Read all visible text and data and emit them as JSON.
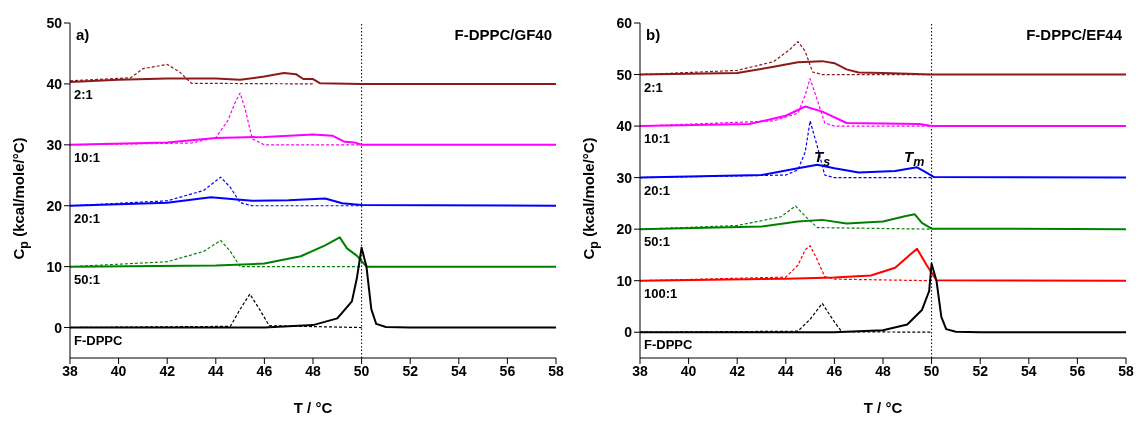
{
  "chart_data": [
    {
      "type": "line",
      "xlabel": "T / °C",
      "ylabel": "C$_{p}$ (kcal/mole/°C)",
      "xlim": [
        38,
        58
      ],
      "xticks": [
        38,
        40,
        42,
        44,
        46,
        48,
        50,
        52,
        54,
        56,
        58
      ],
      "ylim": [
        -5,
        50
      ],
      "yticks": [
        0,
        10,
        20,
        30,
        40,
        50
      ],
      "annotations": [
        "a)",
        "F-DPPC/GF40"
      ],
      "ref_lines": [
        {
          "axis": "x",
          "value": 50,
          "color": "#000000",
          "line_style": "dotted"
        }
      ],
      "series": [
        {
          "name": "2:1",
          "color": "#8b1a1a",
          "line_style": "solid",
          "x": [
            38,
            40,
            42,
            44,
            45,
            46,
            46.8,
            47.3,
            47.6,
            48,
            48.3,
            50,
            58
          ],
          "values": [
            40.3,
            40.7,
            40.9,
            40.9,
            40.7,
            41.2,
            41.8,
            41.6,
            40.8,
            40.8,
            40.1,
            40,
            40
          ]
        },
        {
          "color": "#8b1a1a",
          "line_style": "dashed",
          "x": [
            38,
            40.5,
            41,
            42,
            42.5,
            43,
            48
          ],
          "values": [
            40.5,
            41,
            42.5,
            43.2,
            42,
            40.1,
            40
          ]
        },
        {
          "name": "10:1",
          "color": "#ff00ff",
          "line_style": "solid",
          "x": [
            38,
            42,
            44,
            46,
            48,
            48.8,
            49.3,
            49.7,
            50,
            58
          ],
          "values": [
            30,
            30.4,
            31.1,
            31.3,
            31.7,
            31.5,
            30.5,
            30.4,
            30,
            30
          ]
        },
        {
          "color": "#ff00ff",
          "line_style": "dashed",
          "x": [
            38,
            43,
            44,
            44.5,
            44.8,
            45,
            45.2,
            45.5,
            46,
            50
          ],
          "values": [
            30,
            30.3,
            31.2,
            34,
            37,
            38.5,
            36,
            31,
            30,
            30
          ]
        },
        {
          "name": "20:1",
          "color": "#0000ff",
          "line_style": "solid",
          "x": [
            38,
            42,
            43.8,
            45,
            45.5,
            47,
            48.5,
            49.2,
            50,
            58
          ],
          "values": [
            20,
            20.5,
            21.4,
            21,
            20.8,
            20.9,
            21.2,
            20.4,
            20.1,
            20
          ]
        },
        {
          "color": "#0000ff",
          "line_style": "dashed",
          "x": [
            38,
            42,
            43.5,
            44.2,
            44.6,
            45,
            45.5,
            50
          ],
          "values": [
            20,
            20.8,
            22.5,
            24.7,
            23,
            20.5,
            20,
            20
          ]
        },
        {
          "name": "50:1",
          "color": "#008000",
          "line_style": "solid",
          "x": [
            38,
            44,
            46,
            47.5,
            48.5,
            49.1,
            49.4,
            49.8,
            50.2,
            58
          ],
          "values": [
            10,
            10.2,
            10.5,
            11.7,
            13.5,
            14.8,
            13,
            11.8,
            10,
            10
          ]
        },
        {
          "color": "#008000",
          "line_style": "dashed",
          "x": [
            38,
            42,
            43.5,
            44.2,
            44.6,
            45,
            50
          ],
          "values": [
            10,
            10.8,
            12.5,
            14.3,
            12.5,
            10,
            10
          ]
        },
        {
          "name": "F-DPPC",
          "color": "#000000",
          "line_style": "solid",
          "x": [
            38,
            46,
            48,
            49,
            49.6,
            49.8,
            50,
            50.2,
            50.4,
            50.6,
            51,
            52,
            58
          ],
          "values": [
            0,
            0,
            0.4,
            1.5,
            4.3,
            8,
            13.1,
            10,
            3,
            0.6,
            0.1,
            0,
            0
          ]
        },
        {
          "color": "#000000",
          "line_style": "dashed",
          "x": [
            38,
            44.6,
            45,
            45.4,
            45.8,
            46.2,
            50
          ],
          "values": [
            0,
            0.2,
            3,
            5.5,
            3,
            0.3,
            0
          ]
        }
      ]
    },
    {
      "type": "line",
      "xlabel": "T / °C",
      "ylabel": "C$_{p}$ (kcal/mole/°C)",
      "xlim": [
        38,
        58
      ],
      "xticks": [
        38,
        40,
        42,
        44,
        46,
        48,
        50,
        52,
        54,
        56,
        58
      ],
      "ylim": [
        -5,
        60
      ],
      "yticks": [
        0,
        10,
        20,
        30,
        40,
        50,
        60
      ],
      "annotations": [
        "b)",
        "F-DPPC/EF44",
        "T$_{s}$",
        "T$_{m}$"
      ],
      "ref_lines": [
        {
          "axis": "x",
          "value": 50,
          "color": "#000000",
          "line_style": "dotted"
        }
      ],
      "series": [
        {
          "name": "2:1",
          "color": "#8b1a1a",
          "line_style": "solid",
          "x": [
            38,
            42,
            43.5,
            44.5,
            45.5,
            46,
            46.5,
            47,
            48,
            50,
            58
          ],
          "values": [
            50,
            50.3,
            51.5,
            52.4,
            52.6,
            52.2,
            51,
            50.4,
            50.3,
            50,
            50
          ]
        },
        {
          "color": "#8b1a1a",
          "line_style": "dashed",
          "x": [
            38,
            42,
            43.5,
            44.2,
            44.5,
            44.8,
            45.1,
            45.5,
            50
          ],
          "values": [
            50,
            50.8,
            52.5,
            55,
            56.4,
            54.5,
            50.5,
            50,
            50
          ]
        },
        {
          "name": "10:1",
          "color": "#ff00ff",
          "line_style": "solid",
          "x": [
            38,
            42.5,
            44,
            44.8,
            45.5,
            46.5,
            48,
            49.5,
            50,
            58
          ],
          "values": [
            40,
            40.4,
            42,
            43.8,
            42.8,
            40.6,
            40.5,
            40.4,
            40,
            40
          ]
        },
        {
          "color": "#ff00ff",
          "line_style": "dashed",
          "x": [
            38,
            43.5,
            44.5,
            44.8,
            45,
            45.3,
            45.6,
            46,
            50
          ],
          "values": [
            40,
            41,
            42.5,
            46,
            49.2,
            45,
            40.6,
            40,
            40
          ]
        },
        {
          "name": "20:1",
          "color": "#0000ff",
          "line_style": "solid",
          "x": [
            38,
            43,
            44.5,
            45.3,
            46,
            47,
            48.5,
            49.4,
            49.7,
            50.1,
            58
          ],
          "values": [
            30,
            30.5,
            31.8,
            32.5,
            31.8,
            31,
            31.3,
            32,
            31.2,
            30.1,
            30
          ]
        },
        {
          "color": "#0000ff",
          "line_style": "dashed",
          "x": [
            38,
            44,
            44.5,
            44.8,
            45,
            45.3,
            45.6,
            46,
            50
          ],
          "values": [
            30,
            30.5,
            31.5,
            35,
            41,
            36,
            30.5,
            30,
            30
          ]
        },
        {
          "name": "50:1",
          "color": "#008000",
          "line_style": "solid",
          "x": [
            38,
            43,
            44.5,
            45.5,
            46.5,
            48,
            48.9,
            49.3,
            49.6,
            50,
            58
          ],
          "values": [
            20,
            20.5,
            21.5,
            21.8,
            21.1,
            21.5,
            22.5,
            22.9,
            21.2,
            20.1,
            20
          ]
        },
        {
          "color": "#008000",
          "line_style": "dashed",
          "x": [
            38,
            42,
            43.8,
            44.4,
            44.8,
            45.3,
            50
          ],
          "values": [
            20,
            20.7,
            22.4,
            24.5,
            22.5,
            20.3,
            20
          ]
        },
        {
          "name": "100:1",
          "color": "#ff0000",
          "line_style": "solid",
          "x": [
            38,
            44,
            46,
            47.5,
            48.5,
            49.1,
            49.4,
            49.8,
            50.2,
            58
          ],
          "values": [
            10,
            10.4,
            10.6,
            11,
            12.5,
            15,
            16.2,
            13,
            10.1,
            10
          ]
        },
        {
          "color": "#ff0000",
          "line_style": "dashed",
          "x": [
            38,
            44,
            44.5,
            44.8,
            45,
            45.3,
            45.6,
            46,
            50
          ],
          "values": [
            10,
            10.7,
            13,
            16,
            16.8,
            14,
            10.8,
            10.3,
            10
          ]
        },
        {
          "name": "F-DPPC",
          "color": "#000000",
          "line_style": "solid",
          "x": [
            38,
            46,
            48,
            49,
            49.6,
            49.9,
            50,
            50.2,
            50.4,
            50.6,
            51,
            52,
            58
          ],
          "values": [
            0,
            0,
            0.4,
            1.5,
            4.3,
            8,
            13.3,
            10,
            3,
            0.6,
            0.1,
            0,
            0
          ]
        },
        {
          "color": "#000000",
          "line_style": "dashed",
          "x": [
            38,
            44.5,
            45,
            45.5,
            46,
            46.3,
            50
          ],
          "values": [
            0,
            0.2,
            2.5,
            5.6,
            2,
            0.1,
            0
          ]
        }
      ]
    }
  ]
}
